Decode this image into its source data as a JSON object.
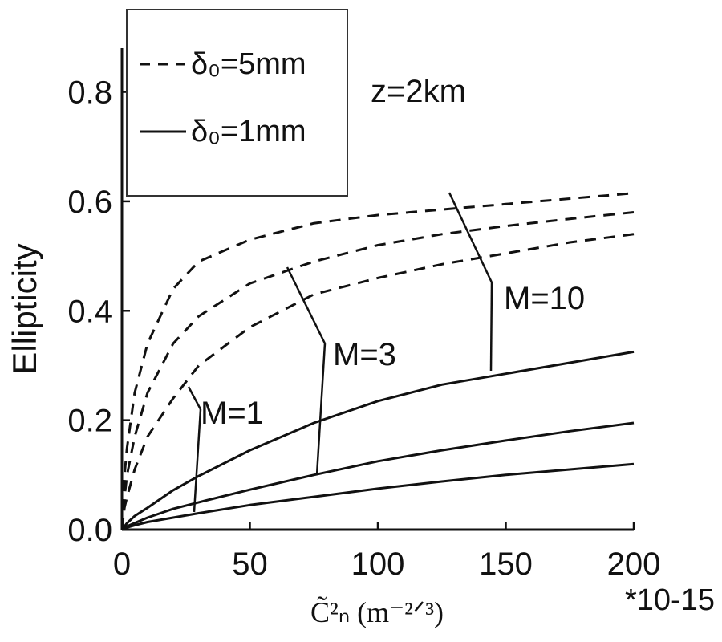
{
  "chart_data": {
    "type": "line",
    "title": "",
    "xlabel": "C̃²ₙ (m⁻²ᐟ³)",
    "ylabel": "Ellipticity",
    "x_multiplier": "*10-15",
    "xlim": [
      0,
      200
    ],
    "ylim": [
      0,
      0.88
    ],
    "xticks": [
      "0",
      "50",
      "100",
      "150",
      "200"
    ],
    "yticks": [
      "0.0",
      "0.2",
      "0.4",
      "0.6",
      "0.8"
    ],
    "xtick_values": [
      0,
      50,
      100,
      150,
      200
    ],
    "ytick_values": [
      0,
      0.2,
      0.4,
      0.6,
      0.8
    ],
    "grid": false,
    "legend_position": "top-left",
    "legend": [
      {
        "label": "δ₀=5mm",
        "style": "dashed"
      },
      {
        "label": "δ₀=1mm",
        "style": "solid"
      }
    ],
    "annotations": {
      "z_label": "z=2km",
      "m1": "M=1",
      "m3": "M=3",
      "m10": "M=10"
    },
    "x": [
      0,
      1,
      2,
      5,
      10,
      20,
      30,
      50,
      75,
      100,
      125,
      150,
      175,
      200
    ],
    "series": [
      {
        "group": "δ₀=5mm",
        "M": 10,
        "style": "dashed",
        "values": [
          0.0,
          0.1,
          0.15,
          0.25,
          0.34,
          0.44,
          0.49,
          0.53,
          0.56,
          0.575,
          0.585,
          0.595,
          0.605,
          0.615
        ]
      },
      {
        "group": "δ₀=5mm",
        "M": 3,
        "style": "dashed",
        "values": [
          0.0,
          0.06,
          0.1,
          0.17,
          0.25,
          0.34,
          0.39,
          0.45,
          0.49,
          0.52,
          0.54,
          0.555,
          0.568,
          0.58
        ]
      },
      {
        "group": "δ₀=5mm",
        "M": 1,
        "style": "dashed",
        "values": [
          0.0,
          0.04,
          0.06,
          0.11,
          0.17,
          0.24,
          0.3,
          0.37,
          0.43,
          0.46,
          0.485,
          0.505,
          0.525,
          0.54
        ]
      },
      {
        "group": "δ₀=1mm",
        "M": 10,
        "style": "solid",
        "values": [
          0.0,
          0.006,
          0.012,
          0.025,
          0.04,
          0.072,
          0.098,
          0.145,
          0.195,
          0.235,
          0.265,
          0.285,
          0.305,
          0.325
        ]
      },
      {
        "group": "δ₀=1mm",
        "M": 3,
        "style": "solid",
        "values": [
          0.0,
          0.003,
          0.006,
          0.012,
          0.022,
          0.038,
          0.05,
          0.073,
          0.1,
          0.125,
          0.145,
          0.163,
          0.18,
          0.195
        ]
      },
      {
        "group": "δ₀=1mm",
        "M": 1,
        "style": "solid",
        "values": [
          0.0,
          0.002,
          0.004,
          0.008,
          0.014,
          0.022,
          0.03,
          0.045,
          0.06,
          0.075,
          0.088,
          0.1,
          0.11,
          0.12
        ]
      }
    ]
  }
}
